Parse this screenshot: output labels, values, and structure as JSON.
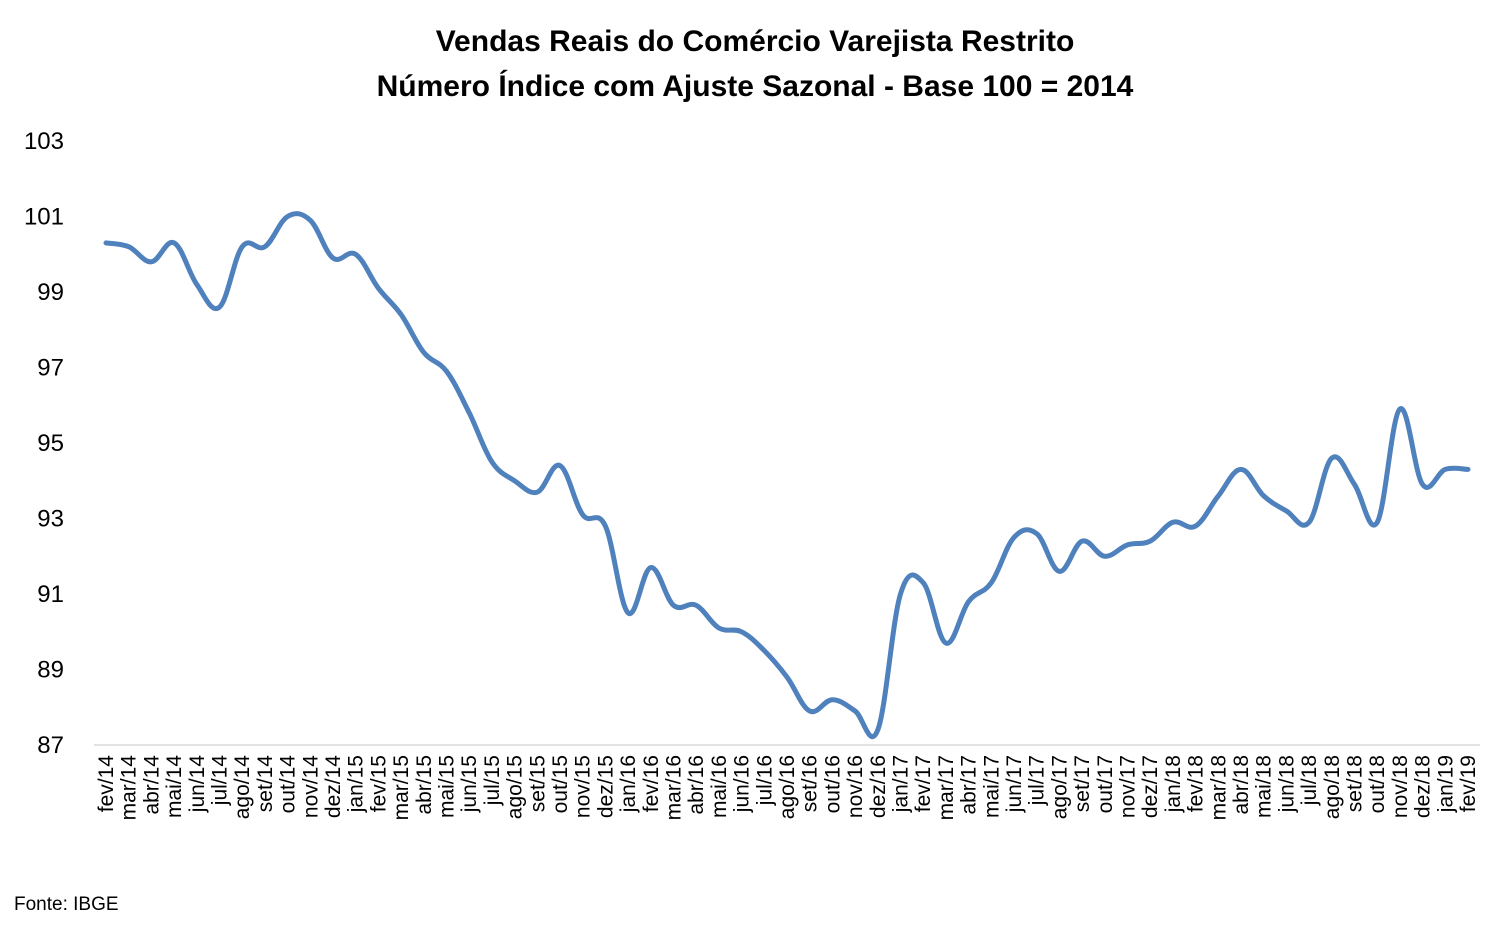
{
  "chart_data": {
    "type": "line",
    "title": "Vendas Reais do Comércio Varejista Restrito",
    "subtitle": "Número Índice com Ajuste Sazonal - Base 100 = 2014",
    "xlabel": "",
    "ylabel": "",
    "ylim": [
      87,
      103
    ],
    "yticks": [
      87,
      89,
      91,
      93,
      95,
      97,
      99,
      101,
      103
    ],
    "grid": false,
    "line_color": "#4F81BD",
    "categories": [
      "fev/14",
      "mar/14",
      "abr/14",
      "mai/14",
      "jun/14",
      "jul/14",
      "ago/14",
      "set/14",
      "out/14",
      "nov/14",
      "dez/14",
      "jan/15",
      "fev/15",
      "mar/15",
      "abr/15",
      "mai/15",
      "jun/15",
      "jul/15",
      "ago/15",
      "set/15",
      "out/15",
      "nov/15",
      "dez/15",
      "jan/16",
      "fev/16",
      "mar/16",
      "abr/16",
      "mai/16",
      "jun/16",
      "jul/16",
      "ago/16",
      "set/16",
      "out/16",
      "nov/16",
      "dez/16",
      "jan/17",
      "fev/17",
      "mar/17",
      "abr/17",
      "mai/17",
      "jun/17",
      "jul/17",
      "ago/17",
      "set/17",
      "out/17",
      "nov/17",
      "dez/17",
      "jan/18",
      "fev/18",
      "mar/18",
      "abr/18",
      "mai/18",
      "jun/18",
      "jul/18",
      "ago/18",
      "set/18",
      "out/18",
      "nov/18",
      "dez/18",
      "jan/19",
      "fev/19"
    ],
    "series": [
      {
        "values": [
          100.3,
          100.2,
          99.8,
          100.3,
          99.2,
          98.6,
          100.2,
          100.2,
          101.0,
          100.9,
          99.9,
          100.0,
          99.1,
          98.4,
          97.4,
          96.9,
          95.8,
          94.5,
          94.0,
          93.7,
          94.4,
          93.1,
          92.8,
          90.5,
          91.7,
          90.7,
          90.7,
          90.1,
          90.0,
          89.5,
          88.8,
          87.9,
          88.2,
          87.9,
          87.4,
          91.0,
          91.3,
          89.7,
          90.8,
          91.3,
          92.5,
          92.6,
          91.6,
          92.4,
          92.0,
          92.3,
          92.4,
          92.9,
          92.8,
          93.6,
          94.3,
          93.6,
          93.2,
          92.9,
          94.6,
          93.9,
          92.9,
          95.9,
          93.9,
          94.3,
          94.3
        ]
      }
    ],
    "source": "Fonte: IBGE"
  }
}
